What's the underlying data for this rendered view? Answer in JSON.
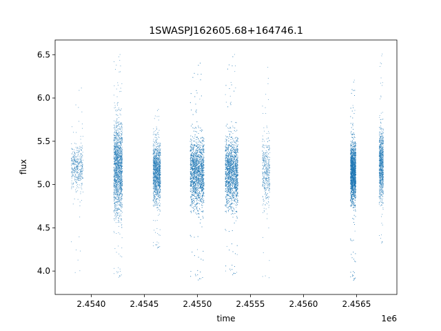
{
  "chart_data": {
    "type": "scatter",
    "title": "1SWASPJ162605.68+164746.1",
    "xlabel": "time",
    "ylabel": "flux",
    "x_offset_label": "1e6",
    "xlim": [
      2.45366,
      2.45688
    ],
    "ylim": [
      3.73,
      6.67
    ],
    "x_ticks": [
      2.454,
      2.4545,
      2.455,
      2.4555,
      2.456,
      2.4565
    ],
    "x_tick_labels": [
      "2.4540",
      "2.4545",
      "2.4550",
      "2.4555",
      "2.4560",
      "2.4565"
    ],
    "y_ticks": [
      4.0,
      4.5,
      5.0,
      5.5,
      6.0,
      6.5
    ],
    "y_tick_labels": [
      "4.0",
      "4.5",
      "5.0",
      "5.5",
      "6.0",
      "6.5"
    ],
    "grid": false,
    "legend": "none",
    "marker_color": "#1f77b4",
    "clusters": [
      {
        "x_start": 2.45381,
        "x_end": 2.45392,
        "center": 5.2,
        "spread": 0.13,
        "y_min": 3.95,
        "y_max": 6.15,
        "count": 420
      },
      {
        "x_start": 2.45421,
        "x_end": 2.45429,
        "center": 5.2,
        "spread": 0.26,
        "y_min": 3.9,
        "y_max": 6.55,
        "count": 1700
      },
      {
        "x_start": 2.45458,
        "x_end": 2.45465,
        "center": 5.15,
        "spread": 0.17,
        "y_min": 4.25,
        "y_max": 5.9,
        "count": 1300
      },
      {
        "x_start": 2.45493,
        "x_end": 2.45506,
        "center": 5.15,
        "spread": 0.2,
        "y_min": 3.87,
        "y_max": 6.45,
        "count": 2600
      },
      {
        "x_start": 2.45526,
        "x_end": 2.45538,
        "center": 5.15,
        "spread": 0.2,
        "y_min": 3.93,
        "y_max": 6.55,
        "count": 2300
      },
      {
        "x_start": 2.45561,
        "x_end": 2.45568,
        "center": 5.15,
        "spread": 0.2,
        "y_min": 3.87,
        "y_max": 6.4,
        "count": 400
      },
      {
        "x_start": 2.45644,
        "x_end": 2.45649,
        "center": 5.15,
        "spread": 0.17,
        "y_min": 3.87,
        "y_max": 6.25,
        "count": 2600
      },
      {
        "x_start": 2.45671,
        "x_end": 2.45675,
        "center": 5.25,
        "spread": 0.2,
        "y_min": 4.3,
        "y_max": 6.55,
        "count": 900
      }
    ]
  }
}
